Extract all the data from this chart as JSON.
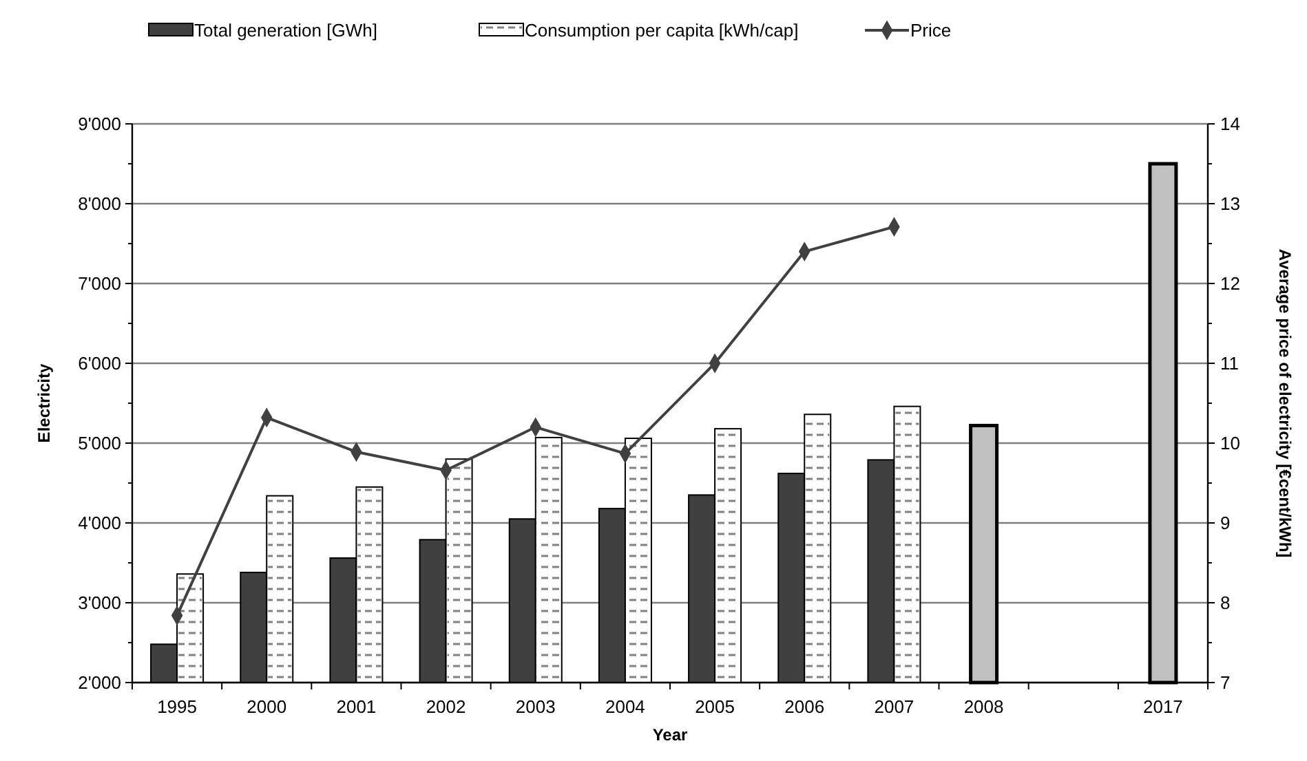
{
  "chart_data": {
    "type": "bar",
    "xlabel": "Year",
    "ylabel": "Electricity",
    "y2label": "Average price of electricity [€cent/kWh]",
    "categories": [
      "1995",
      "2000",
      "2001",
      "2002",
      "2003",
      "2004",
      "2005",
      "2006",
      "2007",
      "2008",
      null,
      "2017"
    ],
    "series": [
      {
        "name": "Total generation [GWh]",
        "color": "#404040",
        "values": [
          2480,
          3380,
          3560,
          3790,
          4050,
          4180,
          4350,
          4620,
          4790,
          null,
          null,
          null
        ]
      },
      {
        "name": "Consumption per capita [kWh/cap]",
        "color": "#ffffff",
        "values": [
          3360,
          4340,
          4450,
          4800,
          5070,
          5060,
          5180,
          5360,
          5460,
          null,
          null,
          null
        ]
      },
      {
        "color": "#c0c0c0",
        "values": [
          null,
          null,
          null,
          null,
          null,
          null,
          null,
          null,
          null,
          5220,
          null,
          8500
        ]
      },
      {
        "name": "Price",
        "type": "line",
        "axis": "y2",
        "color": "#404040",
        "marker": "diamond",
        "values": [
          7.84,
          10.32,
          9.89,
          9.66,
          10.2,
          9.87,
          11.0,
          12.4,
          12.71,
          null,
          null,
          null
        ]
      }
    ],
    "ylim": [
      2000,
      9000
    ],
    "yticks": [
      {
        "value": 2000,
        "label": "2'000"
      },
      {
        "value": 2500,
        "label": null
      },
      {
        "value": 3000,
        "label": "3'000"
      },
      {
        "value": 3500,
        "label": null
      },
      {
        "value": 4000,
        "label": "4'000"
      },
      {
        "value": 4500,
        "label": null
      },
      {
        "value": 5000,
        "label": "5'000"
      },
      {
        "value": 5500,
        "label": null
      },
      {
        "value": 6000,
        "label": "6'000"
      },
      {
        "value": 6500,
        "label": null
      },
      {
        "value": 7000,
        "label": "7'000"
      },
      {
        "value": 7500,
        "label": null
      },
      {
        "value": 8000,
        "label": "8'000"
      },
      {
        "value": 8500,
        "label": null
      },
      {
        "value": 9000,
        "label": "9'000"
      }
    ],
    "y2lim": [
      7,
      14
    ],
    "y2ticks": [
      7,
      {
        "value": 7.5,
        "label": null
      },
      8,
      {
        "value": 8.5,
        "label": null
      },
      9,
      {
        "value": 9.5,
        "label": null
      },
      10,
      {
        "value": 10.5,
        "label": null
      },
      11,
      {
        "value": 11.5,
        "label": null
      },
      12,
      {
        "value": 12.5,
        "label": null
      },
      13,
      {
        "value": 13.5,
        "label": null
      },
      14
    ],
    "grid": "y",
    "legend": "top"
  }
}
